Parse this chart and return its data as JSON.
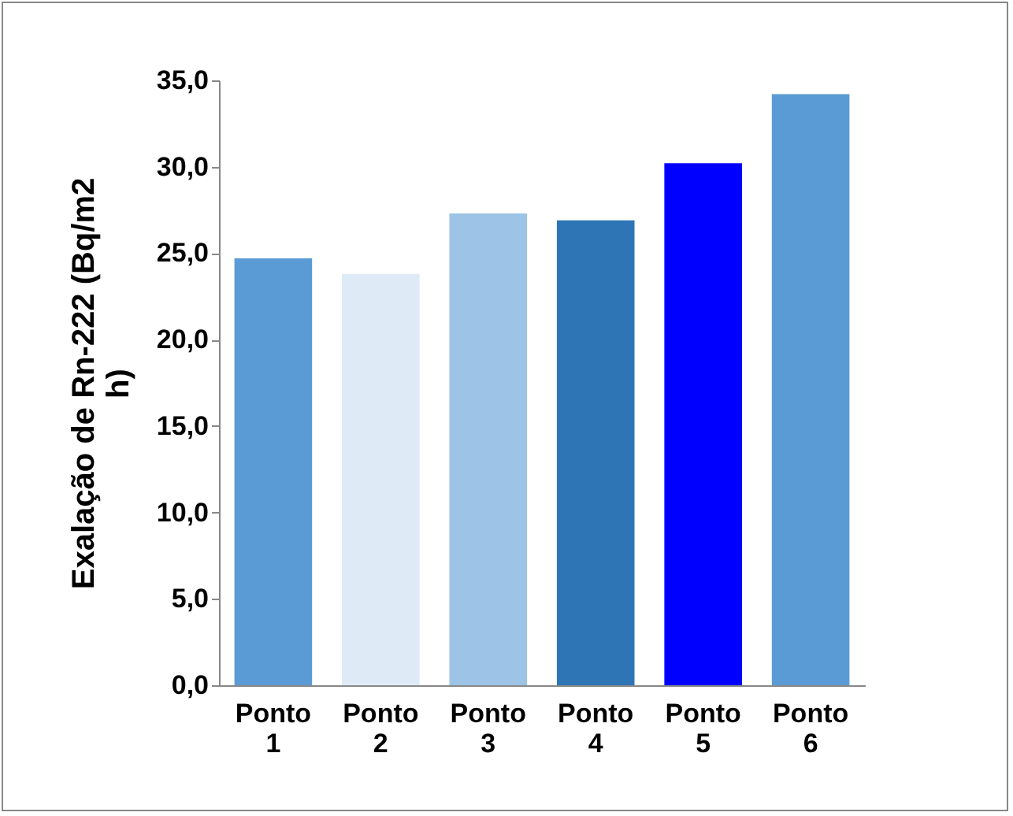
{
  "chart_data": {
    "type": "bar",
    "ylabel": "Exalação de Rn-222 (Bq/m2 h)",
    "categories": [
      "Ponto 1",
      "Ponto 2",
      "Ponto 3",
      "Ponto 4",
      "Ponto 5",
      "Ponto 6"
    ],
    "values": [
      24.7,
      23.8,
      27.3,
      26.9,
      30.2,
      34.2
    ],
    "colors": [
      "#5b9bd5",
      "#deebf7",
      "#9dc3e6",
      "#2e75b6",
      "#0000ff",
      "#5b9bd5"
    ],
    "ylim": [
      0,
      35
    ],
    "yticks": [
      {
        "value": 0,
        "label": "0,0"
      },
      {
        "value": 5,
        "label": "5,0"
      },
      {
        "value": 10,
        "label": "10,0"
      },
      {
        "value": 15,
        "label": "15,0"
      },
      {
        "value": 20,
        "label": "20,0"
      },
      {
        "value": 25,
        "label": "25,0"
      },
      {
        "value": 30,
        "label": "30,0"
      },
      {
        "value": 35,
        "label": "35,0"
      }
    ],
    "grid": false
  }
}
